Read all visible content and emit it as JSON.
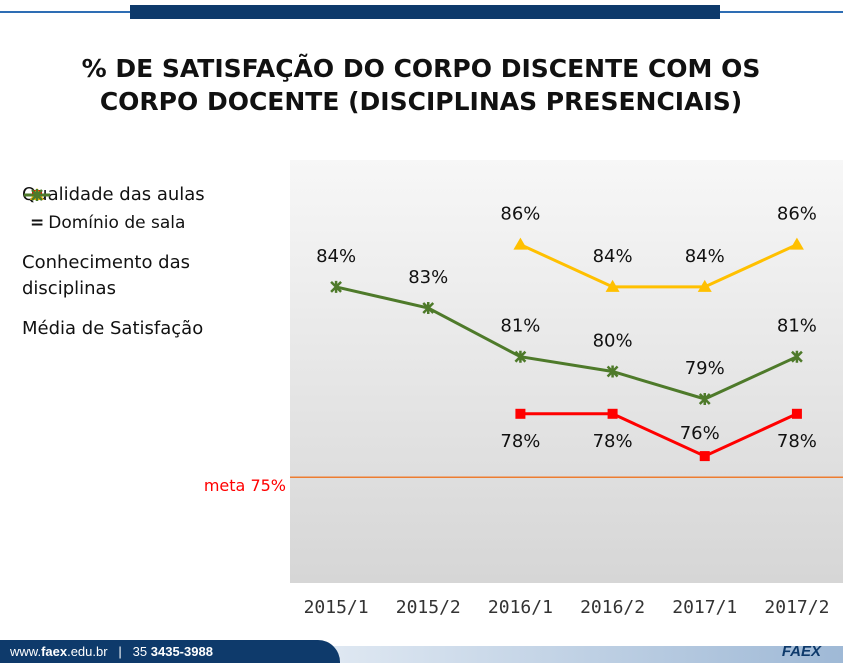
{
  "chart_data": {
    "type": "line",
    "title": [
      "% DE SATISFAÇÃO DO CORPO DISCENTE COM OS",
      "CORPO DOCENTE (DISCIPLINAS PRESENCIAIS)"
    ],
    "categories": [
      "2015/1",
      "2015/2",
      "2016/1",
      "2016/2",
      "2017/1",
      "2017/2"
    ],
    "ylim": [
      70,
      90
    ],
    "series": [
      {
        "name": "Qualidade das aulas",
        "color": "#ff0000",
        "marker": "square",
        "values": [
          null,
          null,
          78,
          78,
          76,
          78
        ],
        "value_labels": [
          null,
          null,
          "78%",
          "78%",
          "76%",
          "78%"
        ]
      },
      {
        "name": "Conhecimento das disciplinas",
        "color": "#ffc000",
        "marker": "triangle",
        "values": [
          null,
          null,
          86,
          84,
          84,
          86
        ],
        "value_labels": [
          null,
          null,
          "86%",
          "84%",
          "84%",
          "86%"
        ]
      },
      {
        "name": "Média de Satisfação",
        "color": "#4e7a2a",
        "marker": "asterisk",
        "values": [
          84,
          83,
          80.7,
          80,
          78.7,
          80.7
        ],
        "value_labels": [
          "84%",
          "83%",
          "81%",
          "80%",
          "79%",
          "81%"
        ]
      }
    ],
    "legend_note": [
      "=",
      "Domínio de sala"
    ],
    "reference_line": {
      "value": 75,
      "label": "meta 75%",
      "color": "#ed7d31"
    }
  },
  "footer": {
    "site": [
      "www.",
      "faex",
      ".edu.br"
    ],
    "separator": "|",
    "phone": [
      "35",
      "3435-3988"
    ],
    "logo": "FAEX"
  }
}
